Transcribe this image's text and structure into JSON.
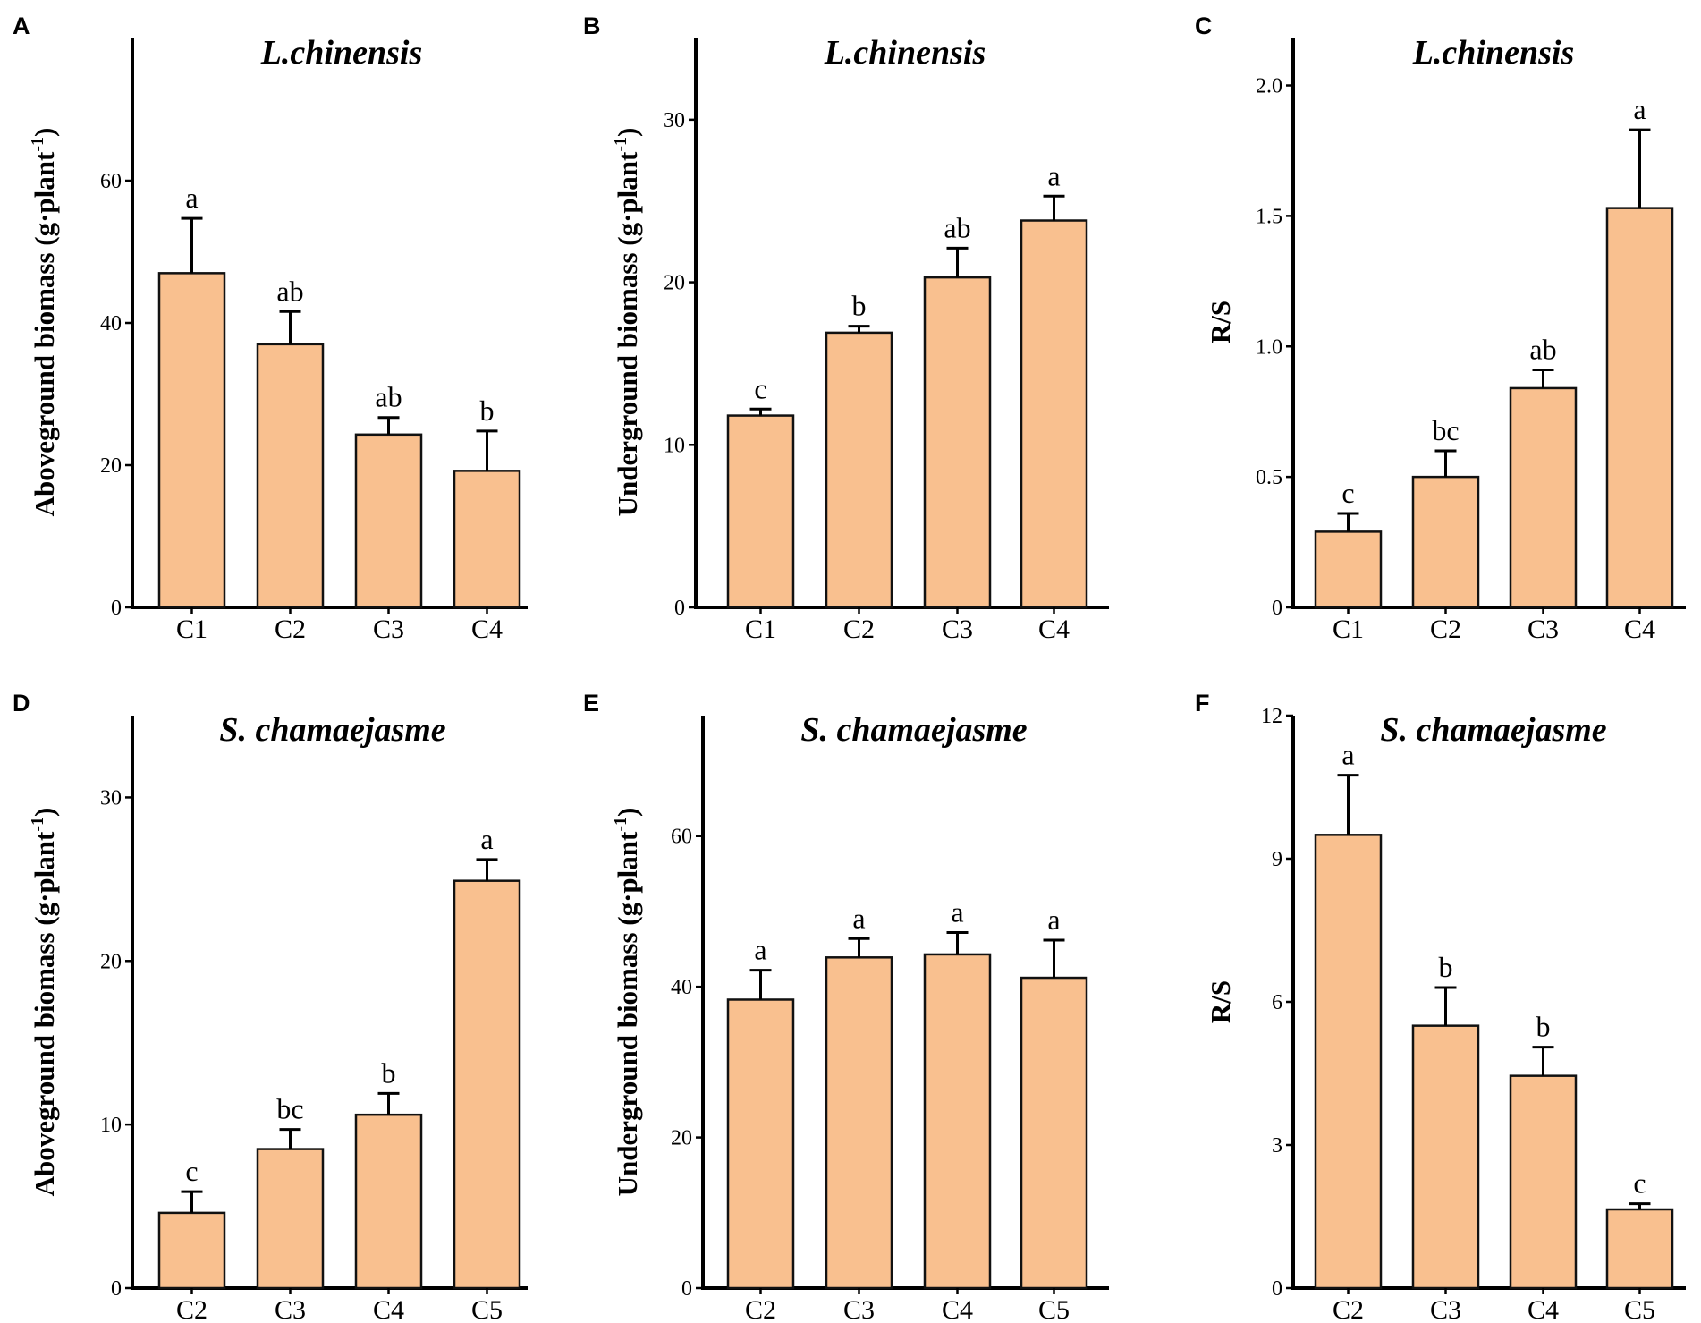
{
  "chart_data": [
    {
      "panel": "A",
      "type": "bar",
      "title": "L.chinensis",
      "ylabel_main": "Aboveground biomass (g·plant",
      "ylabel_sup": "-1",
      "ylabel_close": ")",
      "ylim": [
        0,
        80
      ],
      "yticks": [
        0,
        20,
        40,
        60
      ],
      "categories": [
        "C1",
        "C2",
        "C3",
        "C4"
      ],
      "values": [
        47,
        37,
        24.3,
        19.2
      ],
      "errors": [
        7.7,
        4.6,
        2.4,
        5.6
      ],
      "letters": [
        "a",
        "ab",
        "ab",
        "b"
      ]
    },
    {
      "panel": "B",
      "type": "bar",
      "title": "L.chinensis",
      "ylabel_main": "Underground biomass (g·plant",
      "ylabel_sup": "-1",
      "ylabel_close": ")",
      "ylim": [
        0,
        35
      ],
      "yticks": [
        0,
        10,
        20,
        30
      ],
      "categories": [
        "C1",
        "C2",
        "C3",
        "C4"
      ],
      "values": [
        11.8,
        16.9,
        20.3,
        23.8
      ],
      "errors": [
        0.4,
        0.4,
        1.8,
        1.5
      ],
      "letters": [
        "c",
        "b",
        "ab",
        "a"
      ]
    },
    {
      "panel": "C",
      "type": "bar",
      "title": "L.chinensis",
      "ylabel_main": "R/S",
      "ylabel_sup": "",
      "ylabel_close": "",
      "ylim": [
        0,
        2.18
      ],
      "yticks": [
        0,
        0.5,
        1.0,
        1.5,
        2.0
      ],
      "ytick_labels": [
        "0",
        "0.5",
        "1.0",
        "1.5",
        "2.0"
      ],
      "categories": [
        "C1",
        "C2",
        "C3",
        "C4"
      ],
      "values": [
        0.29,
        0.5,
        0.84,
        1.53
      ],
      "errors": [
        0.07,
        0.1,
        0.07,
        0.3
      ],
      "letters": [
        "c",
        "bc",
        "ab",
        "a"
      ]
    },
    {
      "panel": "D",
      "type": "bar",
      "title": "S. chamaejasme",
      "ylabel_main": "Aboveground biomass (g·plant",
      "ylabel_sup": "-1",
      "ylabel_close": ")",
      "ylim": [
        0,
        35
      ],
      "yticks": [
        0,
        10,
        20,
        30
      ],
      "categories": [
        "C2",
        "C3",
        "C4",
        "C5"
      ],
      "values": [
        4.6,
        8.5,
        10.6,
        24.9
      ],
      "errors": [
        1.3,
        1.2,
        1.3,
        1.3
      ],
      "letters": [
        "c",
        "bc",
        "b",
        "a"
      ]
    },
    {
      "panel": "E",
      "type": "bar",
      "title": "S. chamaejasme",
      "ylabel_main": "Underground biomass (g·plant",
      "ylabel_sup": "-1",
      "ylabel_close": ")",
      "ylim": [
        0,
        76
      ],
      "yticks": [
        0,
        20,
        40,
        60
      ],
      "categories": [
        "C2",
        "C3",
        "C4",
        "C5"
      ],
      "values": [
        38.3,
        43.9,
        44.3,
        41.2
      ],
      "errors": [
        3.9,
        2.5,
        2.9,
        5.0
      ],
      "letters": [
        "a",
        "a",
        "a",
        "a"
      ]
    },
    {
      "panel": "F",
      "type": "bar",
      "title": "S. chamaejasme",
      "ylabel_main": "R/S",
      "ylabel_sup": "",
      "ylabel_close": "",
      "ylim": [
        0,
        12
      ],
      "yticks": [
        0,
        3,
        6,
        9,
        12
      ],
      "categories": [
        "C2",
        "C3",
        "C4",
        "C5"
      ],
      "values": [
        9.5,
        5.5,
        4.45,
        1.65
      ],
      "errors": [
        1.25,
        0.8,
        0.6,
        0.12
      ],
      "letters": [
        "a",
        "b",
        "b",
        "c"
      ]
    }
  ]
}
